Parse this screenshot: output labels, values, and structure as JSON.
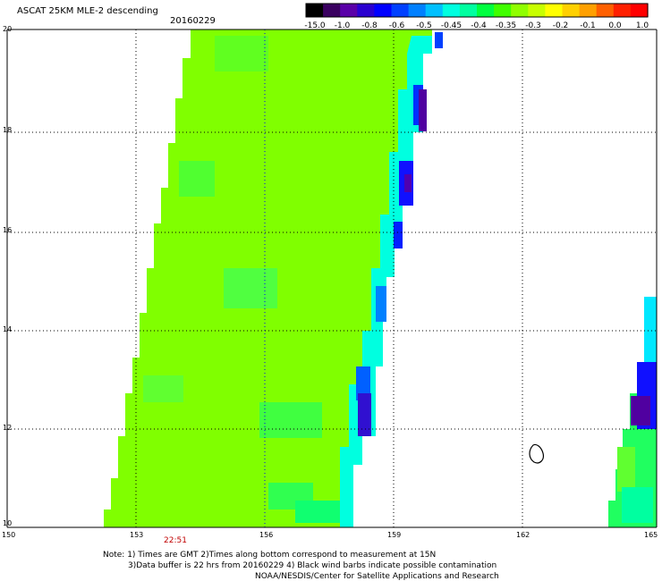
{
  "header": {
    "title": "ASCAT 25KM MLE-2 descending",
    "date": "20160229"
  },
  "colorbar": {
    "labels": [
      "-15.0",
      "-1.0",
      "-0.8",
      "-0.6",
      "-0.5",
      "-0.45",
      "-0.4",
      "-0.35",
      "-0.3",
      "-0.2",
      "-0.1",
      "0.0",
      "1.0"
    ],
    "colors": [
      "#000000",
      "#3a0060",
      "#5a00a8",
      "#2a00d0",
      "#0000ff",
      "#0040ff",
      "#0080ff",
      "#00c0ff",
      "#00ffe0",
      "#00ffa0",
      "#00ff40",
      "#40ff00",
      "#90ff00",
      "#c8ff00",
      "#ffff00",
      "#ffd000",
      "#ffa000",
      "#ff6000",
      "#ff2000",
      "#ff0000"
    ]
  },
  "axes": {
    "x_labels": [
      "150",
      "153",
      "156",
      "159",
      "162",
      "165"
    ],
    "y_labels": [
      "20",
      "18",
      "16",
      "14",
      "12",
      "10"
    ]
  },
  "footer": {
    "time_label": "22:51",
    "note_line1": "Note: 1) Times are GMT 2)Times along bottom correspond to measurement at 15N",
    "note_line2": "3)Data buffer is 22 hrs from 20160229 4) Black wind barbs indicate possible contamination",
    "note_line3": "NOAA/NESDIS/Center for Satellite Applications and Research"
  },
  "colors": {
    "swath_main": "#80ff00",
    "swath_green": "#40ff20",
    "edge_cyan": "#00ffff",
    "edge_blue": "#0000ff",
    "edge_purple": "#5000a0",
    "grid": "#000000",
    "meridian_center": "#0000ff"
  }
}
